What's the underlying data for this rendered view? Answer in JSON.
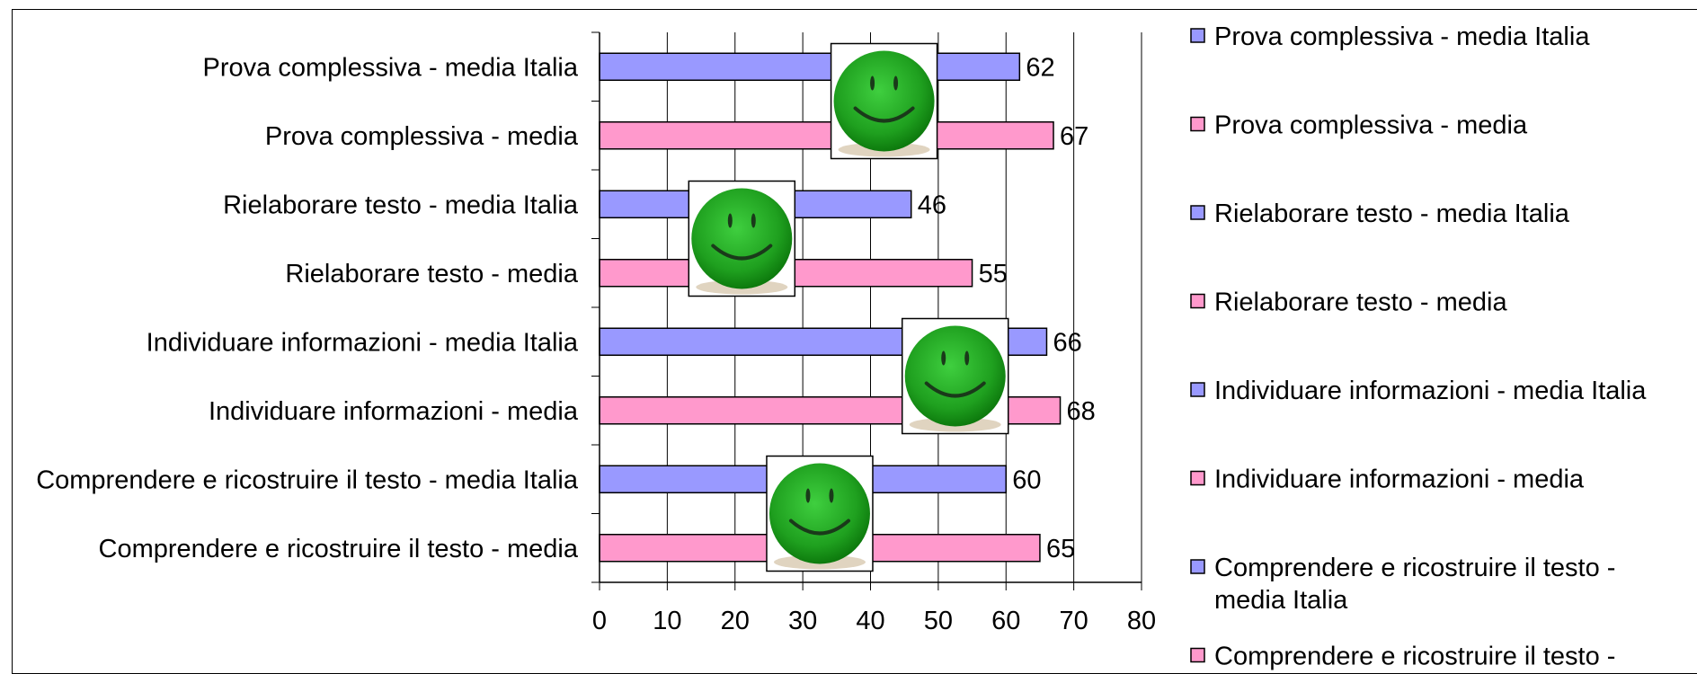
{
  "chart_data": {
    "type": "bar",
    "orientation": "horizontal",
    "categories": [
      "Prova complessiva - media Italia",
      "Prova complessiva - media",
      "Rielaborare testo - media Italia",
      "Rielaborare testo - media",
      "Individuare informazioni - media Italia",
      "Individuare informazioni - media",
      "Comprendere e ricostruire il testo - media Italia",
      "Comprendere e ricostruire il testo - media"
    ],
    "values": [
      62,
      67,
      46,
      55,
      66,
      68,
      60,
      65
    ],
    "bar_colors": [
      "#9999ff",
      "#ff99cc",
      "#9999ff",
      "#ff99cc",
      "#9999ff",
      "#ff99cc",
      "#9999ff",
      "#ff99cc"
    ],
    "xlim": [
      0,
      80
    ],
    "xticks": [
      "0",
      "10",
      "20",
      "30",
      "40",
      "50",
      "60",
      "70",
      "80"
    ],
    "grid": true,
    "data_labels": true,
    "legend_position": "right",
    "legend": [
      {
        "label": "Prova complessiva - media Italia",
        "color": "#9999ff"
      },
      {
        "label": "Prova complessiva - media",
        "color": "#ff99cc"
      },
      {
        "label": "Rielaborare testo - media Italia",
        "color": "#9999ff"
      },
      {
        "label": "Rielaborare testo - media",
        "color": "#ff99cc"
      },
      {
        "label": "Individuare informazioni - media Italia",
        "color": "#9999ff"
      },
      {
        "label": "Individuare informazioni - media",
        "color": "#ff99cc"
      },
      {
        "label": "Comprendere e ricostruire il testo - media Italia",
        "color": "#9999ff"
      },
      {
        "label": "Comprendere e ricostruire il testo - media",
        "color": "#ff99cc"
      }
    ],
    "annotations": [
      {
        "type": "smiley",
        "x_center": 42,
        "rows": [
          0,
          1
        ]
      },
      {
        "type": "smiley",
        "x_center": 21,
        "rows": [
          2,
          3
        ]
      },
      {
        "type": "smiley",
        "x_center": 52.5,
        "rows": [
          4,
          5
        ]
      },
      {
        "type": "smiley",
        "x_center": 32.5,
        "rows": [
          6,
          7
        ]
      }
    ],
    "annotation_icon": "smiley-face-icon"
  }
}
